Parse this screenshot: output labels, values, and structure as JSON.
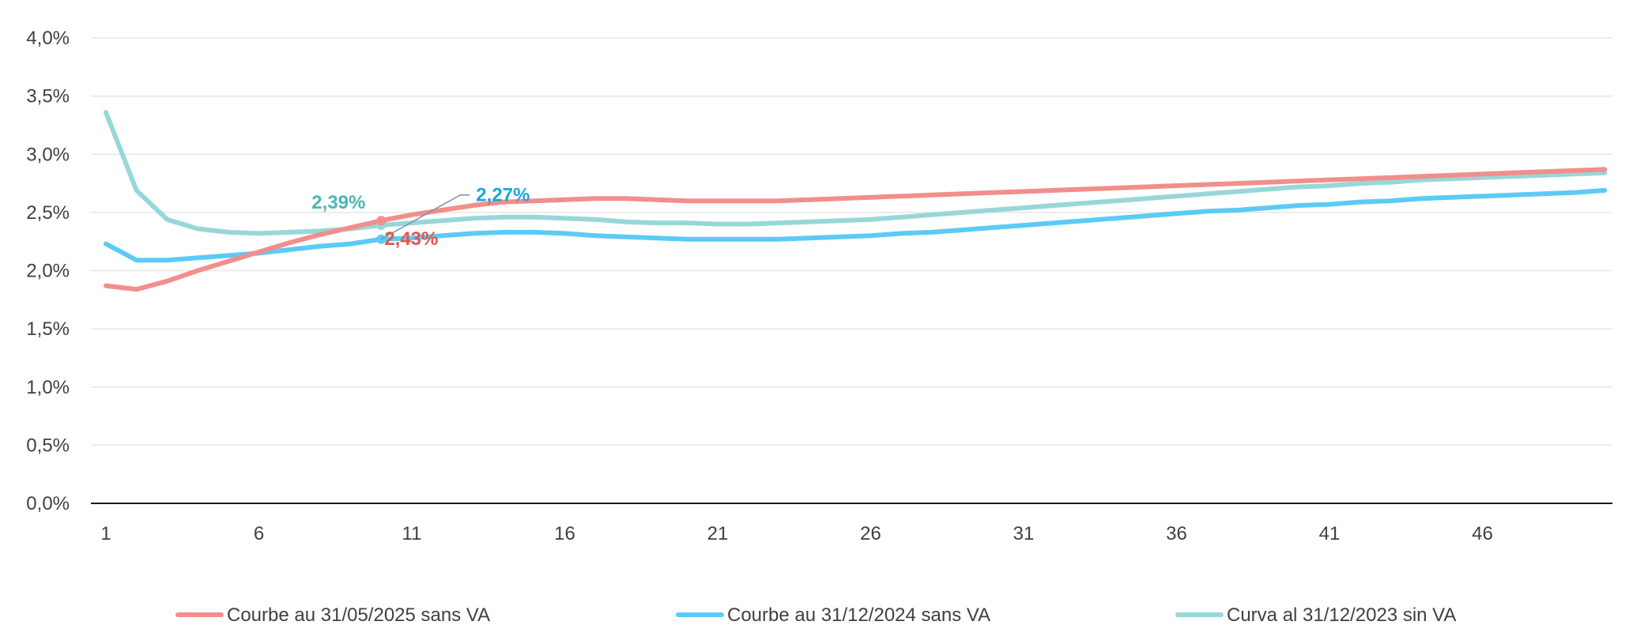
{
  "chart_data": {
    "type": "line",
    "title": "",
    "xlabel": "",
    "ylabel": "",
    "x": [
      1,
      2,
      3,
      4,
      5,
      6,
      7,
      8,
      9,
      10,
      11,
      12,
      13,
      14,
      15,
      16,
      17,
      18,
      19,
      20,
      21,
      22,
      23,
      24,
      25,
      26,
      27,
      28,
      29,
      30,
      31,
      32,
      33,
      34,
      35,
      36,
      37,
      38,
      39,
      40,
      41,
      42,
      43,
      44,
      45,
      46,
      47,
      48,
      49,
      50
    ],
    "xticks": [
      1,
      6,
      11,
      16,
      21,
      26,
      31,
      36,
      41,
      46
    ],
    "xtick_labels": [
      "1",
      "6",
      "11",
      "16",
      "21",
      "26",
      "31",
      "36",
      "41",
      "46"
    ],
    "xlim": [
      1,
      50
    ],
    "ylim": [
      0,
      0.04
    ],
    "yticks": [
      0,
      0.005,
      0.01,
      0.015,
      0.02,
      0.025,
      0.03,
      0.035,
      0.04
    ],
    "ytick_labels": [
      "0,0%",
      "0,5%",
      "1,0%",
      "1,5%",
      "2,0%",
      "2,5%",
      "3,0%",
      "3,5%",
      "4,0%"
    ],
    "grid": "horizontal",
    "legend_position": "bottom",
    "series": [
      {
        "name": "Courbe au 31/05/2025 sans VA",
        "color": "#F28E8B",
        "values": [
          0.0187,
          0.0184,
          0.0191,
          0.02,
          0.0208,
          0.0216,
          0.0224,
          0.0231,
          0.0237,
          0.0243,
          0.0248,
          0.0252,
          0.0256,
          0.0259,
          0.026,
          0.0261,
          0.0262,
          0.0262,
          0.0261,
          0.026,
          0.026,
          0.026,
          0.026,
          0.0261,
          0.0262,
          0.0263,
          0.0264,
          0.0265,
          0.0266,
          0.0267,
          0.0268,
          0.0269,
          0.027,
          0.0271,
          0.0272,
          0.0273,
          0.0274,
          0.0275,
          0.0276,
          0.0277,
          0.0278,
          0.0279,
          0.028,
          0.0281,
          0.0282,
          0.0283,
          0.0284,
          0.0285,
          0.0286,
          0.0287
        ]
      },
      {
        "name": "Courbe au 31/12/2024 sans VA",
        "color": "#5BCBF5",
        "values": [
          0.0223,
          0.0209,
          0.0209,
          0.0211,
          0.0213,
          0.0215,
          0.0218,
          0.0221,
          0.0223,
          0.0227,
          0.0228,
          0.023,
          0.0232,
          0.0233,
          0.0233,
          0.0232,
          0.023,
          0.0229,
          0.0228,
          0.0227,
          0.0227,
          0.0227,
          0.0227,
          0.0228,
          0.0229,
          0.023,
          0.0232,
          0.0233,
          0.0235,
          0.0237,
          0.0239,
          0.0241,
          0.0243,
          0.0245,
          0.0247,
          0.0249,
          0.0251,
          0.0252,
          0.0254,
          0.0256,
          0.0257,
          0.0259,
          0.026,
          0.0262,
          0.0263,
          0.0264,
          0.0265,
          0.0266,
          0.0267,
          0.0269
        ]
      },
      {
        "name": "Curva al 31/12/2023 sin VA",
        "color": "#98D7D8",
        "values": [
          0.0336,
          0.0269,
          0.0244,
          0.0236,
          0.0233,
          0.0232,
          0.0233,
          0.0234,
          0.0236,
          0.0239,
          0.0241,
          0.0243,
          0.0245,
          0.0246,
          0.0246,
          0.0245,
          0.0244,
          0.0242,
          0.0241,
          0.0241,
          0.024,
          0.024,
          0.0241,
          0.0242,
          0.0243,
          0.0244,
          0.0246,
          0.0248,
          0.025,
          0.0252,
          0.0254,
          0.0256,
          0.0258,
          0.026,
          0.0262,
          0.0264,
          0.0266,
          0.0268,
          0.027,
          0.0272,
          0.0273,
          0.0275,
          0.0276,
          0.0278,
          0.0279,
          0.028,
          0.0281,
          0.0282,
          0.0283,
          0.0284
        ]
      }
    ],
    "annotations": [
      {
        "series": 2,
        "x": 10,
        "y": 0.0239,
        "label": "2,39%",
        "color": "#4DB6B8"
      },
      {
        "series": 1,
        "x": 10,
        "y": 0.0227,
        "label": "2,27%",
        "color": "#1AA7D8"
      },
      {
        "series": 0,
        "x": 10,
        "y": 0.0243,
        "label": "2,43%",
        "color": "#E8524E"
      }
    ]
  }
}
